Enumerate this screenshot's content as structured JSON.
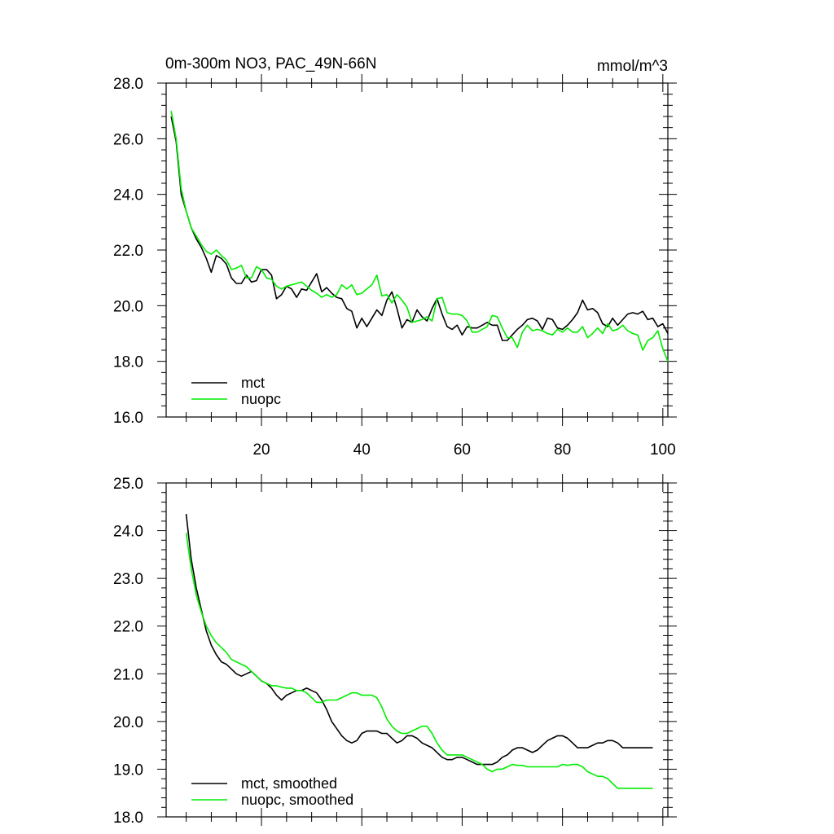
{
  "chart_data": [
    {
      "type": "line",
      "title": "0m-300m NO3, PAC_49N-66N",
      "units": "mmol/m^3",
      "xlim": [
        1,
        101
      ],
      "ylim": [
        16,
        28
      ],
      "xticks": [
        20,
        40,
        60,
        80,
        100
      ],
      "yticks": [
        "16.0",
        "18.0",
        "20.0",
        "22.0",
        "24.0",
        "26.0",
        "28.0"
      ],
      "legend_position": "bottom-left",
      "series": [
        {
          "name": "mct",
          "color": "#000000",
          "x": [
            2,
            3,
            4,
            5,
            6,
            7,
            8,
            9,
            10,
            11,
            12,
            13,
            14,
            15,
            16,
            17,
            18,
            19,
            20,
            21,
            22,
            23,
            24,
            25,
            26,
            27,
            28,
            29,
            30,
            31,
            32,
            33,
            34,
            35,
            36,
            37,
            38,
            39,
            40,
            41,
            42,
            43,
            44,
            45,
            46,
            47,
            48,
            49,
            50,
            51,
            52,
            53,
            54,
            55,
            56,
            57,
            58,
            59,
            60,
            61,
            62,
            63,
            64,
            65,
            66,
            67,
            68,
            69,
            70,
            71,
            72,
            73,
            74,
            75,
            76,
            77,
            78,
            79,
            80,
            81,
            82,
            83,
            84,
            85,
            86,
            87,
            88,
            89,
            90,
            91,
            92,
            93,
            94,
            95,
            96,
            97,
            98,
            99,
            100,
            101
          ],
          "values": [
            26.8,
            25.9,
            24.0,
            23.4,
            22.8,
            22.4,
            22.1,
            21.7,
            21.2,
            21.8,
            21.7,
            21.5,
            21.0,
            20.8,
            20.8,
            21.1,
            20.85,
            20.9,
            21.3,
            21.3,
            21.1,
            20.25,
            20.4,
            20.7,
            20.6,
            20.3,
            20.6,
            20.55,
            20.85,
            21.15,
            20.5,
            20.65,
            20.45,
            20.3,
            20.25,
            19.9,
            19.8,
            19.2,
            19.55,
            19.25,
            19.55,
            19.85,
            19.65,
            20.2,
            20.5,
            19.9,
            19.2,
            19.5,
            19.4,
            19.85,
            19.6,
            19.45,
            19.9,
            20.25,
            19.7,
            19.25,
            19.15,
            19.3,
            18.95,
            19.25,
            19.2,
            19.2,
            19.3,
            19.4,
            19.3,
            19.3,
            18.75,
            18.75,
            18.95,
            19.15,
            19.3,
            19.5,
            19.55,
            19.45,
            19.15,
            19.55,
            19.5,
            19.2,
            19.15,
            19.3,
            19.5,
            19.75,
            20.2,
            19.85,
            19.9,
            19.75,
            19.35,
            19.25,
            19.55,
            19.3,
            19.5,
            19.7,
            19.75,
            19.7,
            19.8,
            19.5,
            19.55,
            19.25,
            19.35,
            19.0
          ]
        },
        {
          "name": "nuopc",
          "color": "#00ee00",
          "x": [
            2,
            3,
            4,
            5,
            6,
            7,
            8,
            9,
            10,
            11,
            12,
            13,
            14,
            15,
            16,
            17,
            18,
            19,
            20,
            21,
            22,
            23,
            24,
            25,
            26,
            27,
            28,
            29,
            30,
            31,
            32,
            33,
            34,
            35,
            36,
            37,
            38,
            39,
            40,
            41,
            42,
            43,
            44,
            45,
            46,
            47,
            48,
            49,
            50,
            51,
            52,
            53,
            54,
            55,
            56,
            57,
            58,
            59,
            60,
            61,
            62,
            63,
            64,
            65,
            66,
            67,
            68,
            69,
            70,
            71,
            72,
            73,
            74,
            75,
            76,
            77,
            78,
            79,
            80,
            81,
            82,
            83,
            84,
            85,
            86,
            87,
            88,
            89,
            90,
            91,
            92,
            93,
            94,
            95,
            96,
            97,
            98,
            99,
            100,
            101
          ],
          "values": [
            27.0,
            26.0,
            24.2,
            23.4,
            22.8,
            22.5,
            22.2,
            21.95,
            21.85,
            22.0,
            21.8,
            21.65,
            21.3,
            21.35,
            21.45,
            21.0,
            21.0,
            21.4,
            21.3,
            21.0,
            20.95,
            20.7,
            20.6,
            20.7,
            20.75,
            20.8,
            20.85,
            20.7,
            20.55,
            20.45,
            20.3,
            20.4,
            20.3,
            20.4,
            20.75,
            20.6,
            20.75,
            20.4,
            20.45,
            20.6,
            20.75,
            21.1,
            20.35,
            20.4,
            20.1,
            20.4,
            20.2,
            19.95,
            19.4,
            19.45,
            19.5,
            19.6,
            19.45,
            20.25,
            20.3,
            19.75,
            19.7,
            19.7,
            19.65,
            19.45,
            19.05,
            19.05,
            19.15,
            19.25,
            19.65,
            19.6,
            19.2,
            18.85,
            18.85,
            18.5,
            19.05,
            19.3,
            19.1,
            19.15,
            19.1,
            19.0,
            18.95,
            19.15,
            19.05,
            19.2,
            19.05,
            19.05,
            19.25,
            18.85,
            19.0,
            19.2,
            19.0,
            19.35,
            19.1,
            19.15,
            19.3,
            19.1,
            19.0,
            18.95,
            18.4,
            18.75,
            18.85,
            19.1,
            18.45,
            18.0
          ]
        }
      ]
    },
    {
      "type": "line",
      "xlim": [
        1,
        101
      ],
      "ylim": [
        18,
        25
      ],
      "xticks": [
        20,
        40,
        60,
        80,
        100
      ],
      "yticks": [
        "18.0",
        "19.0",
        "20.0",
        "21.0",
        "22.0",
        "23.0",
        "24.0",
        "25.0"
      ],
      "legend_position": "bottom-left",
      "series": [
        {
          "name": "mct, smoothed",
          "color": "#000000",
          "x": [
            5,
            6,
            7,
            8,
            9,
            10,
            11,
            12,
            13,
            14,
            15,
            16,
            17,
            18,
            19,
            20,
            21,
            22,
            23,
            24,
            25,
            26,
            27,
            28,
            29,
            30,
            31,
            32,
            33,
            34,
            35,
            36,
            37,
            38,
            39,
            40,
            41,
            42,
            43,
            44,
            45,
            46,
            47,
            48,
            49,
            50,
            51,
            52,
            53,
            54,
            55,
            56,
            57,
            58,
            59,
            60,
            61,
            62,
            63,
            64,
            65,
            66,
            67,
            68,
            69,
            70,
            71,
            72,
            73,
            74,
            75,
            76,
            77,
            78,
            79,
            80,
            81,
            82,
            83,
            84,
            85,
            86,
            87,
            88,
            89,
            90,
            91,
            92,
            93,
            94,
            95,
            96,
            97,
            98
          ],
          "values": [
            24.35,
            23.4,
            22.8,
            22.35,
            21.9,
            21.6,
            21.4,
            21.25,
            21.2,
            21.1,
            21.0,
            20.95,
            21.0,
            21.05,
            20.95,
            20.85,
            20.8,
            20.7,
            20.55,
            20.45,
            20.55,
            20.6,
            20.65,
            20.65,
            20.7,
            20.65,
            20.6,
            20.45,
            20.25,
            20.0,
            19.85,
            19.7,
            19.6,
            19.55,
            19.6,
            19.75,
            19.8,
            19.8,
            19.8,
            19.75,
            19.75,
            19.65,
            19.55,
            19.6,
            19.7,
            19.7,
            19.65,
            19.55,
            19.5,
            19.45,
            19.35,
            19.25,
            19.2,
            19.2,
            19.25,
            19.25,
            19.2,
            19.15,
            19.1,
            19.1,
            19.1,
            19.1,
            19.15,
            19.25,
            19.3,
            19.4,
            19.45,
            19.45,
            19.4,
            19.35,
            19.4,
            19.5,
            19.6,
            19.65,
            19.7,
            19.7,
            19.65,
            19.55,
            19.45,
            19.45,
            19.45,
            19.5,
            19.55,
            19.55,
            19.6,
            19.6,
            19.55,
            19.45,
            19.45,
            19.45,
            19.45,
            19.45,
            19.45,
            19.45
          ]
        },
        {
          "name": "nuopc, smoothed",
          "color": "#00ee00",
          "x": [
            5,
            6,
            7,
            8,
            9,
            10,
            11,
            12,
            13,
            14,
            15,
            16,
            17,
            18,
            19,
            20,
            21,
            22,
            23,
            24,
            25,
            26,
            27,
            28,
            29,
            30,
            31,
            32,
            33,
            34,
            35,
            36,
            37,
            38,
            39,
            40,
            41,
            42,
            43,
            44,
            45,
            46,
            47,
            48,
            49,
            50,
            51,
            52,
            53,
            54,
            55,
            56,
            57,
            58,
            59,
            60,
            61,
            62,
            63,
            64,
            65,
            66,
            67,
            68,
            69,
            70,
            71,
            72,
            73,
            74,
            75,
            76,
            77,
            78,
            79,
            80,
            81,
            82,
            83,
            84,
            85,
            86,
            87,
            88,
            89,
            90,
            91,
            92,
            93,
            94,
            95,
            96,
            97,
            98
          ],
          "values": [
            23.95,
            23.2,
            22.65,
            22.3,
            22.0,
            21.8,
            21.65,
            21.55,
            21.45,
            21.3,
            21.25,
            21.2,
            21.15,
            21.05,
            20.95,
            20.85,
            20.8,
            20.75,
            20.75,
            20.72,
            20.7,
            20.7,
            20.65,
            20.65,
            20.6,
            20.5,
            20.4,
            20.4,
            20.45,
            20.45,
            20.45,
            20.5,
            20.55,
            20.6,
            20.6,
            20.55,
            20.55,
            20.55,
            20.5,
            20.3,
            20.05,
            19.9,
            19.8,
            19.75,
            19.75,
            19.8,
            19.85,
            19.9,
            19.9,
            19.75,
            19.55,
            19.4,
            19.3,
            19.3,
            19.3,
            19.3,
            19.25,
            19.2,
            19.15,
            19.1,
            19.0,
            18.95,
            19.0,
            19.0,
            19.05,
            19.1,
            19.08,
            19.08,
            19.05,
            19.05,
            19.05,
            19.05,
            19.05,
            19.05,
            19.05,
            19.1,
            19.08,
            19.1,
            19.1,
            19.05,
            18.95,
            18.9,
            18.85,
            18.85,
            18.8,
            18.7,
            18.6,
            18.6,
            18.6,
            18.6,
            18.6,
            18.6,
            18.6,
            18.6
          ]
        }
      ]
    }
  ]
}
